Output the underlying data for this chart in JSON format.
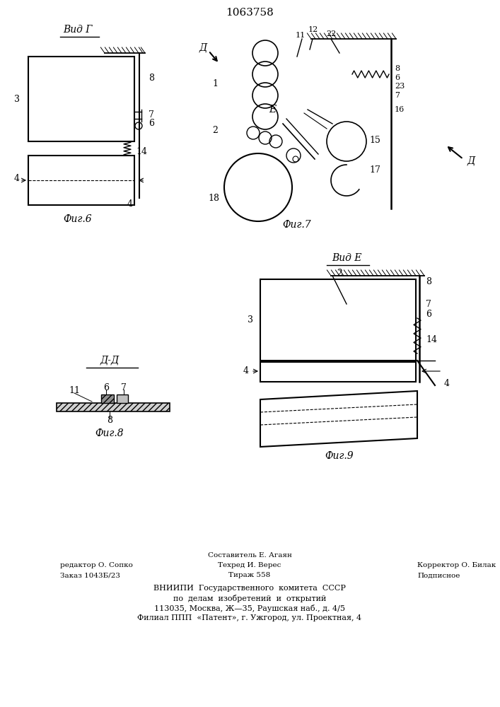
{
  "patent_number": "1063758",
  "bg_color": "#ffffff",
  "line_color": "#000000",
  "fig6_label": "Фиг.6",
  "fig7_label": "Фиг.7",
  "fig8_label": "Фиг.8",
  "fig9_label": "Фиг.9",
  "vid_g_label": "Вид Г",
  "vid_e_label": "Вид E",
  "dd_label": "Д-Д",
  "footer_line1_left": "редактор О. Сопко",
  "footer_line2_left": "Заказ 1043Б/23",
  "footer_line1_center": "Составитель Е. Агаян",
  "footer_line2_center": "Техред И. Верес",
  "footer_line3_center": "Тираж 558",
  "footer_line1_right": "Корректор О. Билак",
  "footer_line2_right": "Подписное",
  "footer_vniiipi1": "ВНИИПИ  Государственного  комитета  СССР",
  "footer_vniiipi2": "по  делам  изобретений  и  открытий",
  "footer_vniiipi3": "113035, Москва, Ж—35, Раушская наб., д. 4/5",
  "footer_vniiipi4": "Филиал ППП  «Патент», г. Ужгород, ул. Проектная, 4"
}
